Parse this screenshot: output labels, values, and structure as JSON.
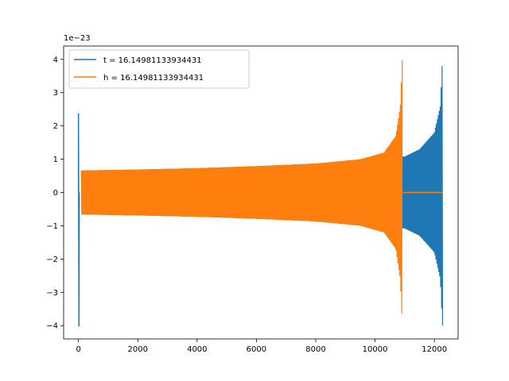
{
  "chart_data": {
    "type": "line",
    "title": "",
    "xlabel": "",
    "ylabel": "",
    "y_offset_label": "1e−23",
    "xlim": [
      -500,
      12800
    ],
    "ylim": [
      -4.4,
      4.4
    ],
    "x_ticks": [
      0,
      2000,
      4000,
      6000,
      8000,
      10000,
      12000
    ],
    "y_ticks": [
      -4,
      -3,
      -2,
      -1,
      0,
      1,
      2,
      3,
      4
    ],
    "x_tick_labels": [
      "0",
      "2000",
      "4000",
      "6000",
      "8000",
      "10000",
      "12000"
    ],
    "y_tick_labels": [
      "−4",
      "−3",
      "−2",
      "−1",
      "0",
      "1",
      "2",
      "3",
      "4"
    ],
    "grid": false,
    "legend_position": "upper-left",
    "series": [
      {
        "name": "t = 16.14981133934431",
        "color": "#1f77b4",
        "initial_spike": {
          "x": 0,
          "max": 2.38,
          "min": -4.02
        },
        "envelope_x": [
          100,
          2000,
          4000,
          6000,
          8000,
          10000,
          10950,
          11000,
          11500,
          12000,
          12200,
          12270
        ],
        "envelope_amp": [
          0.66,
          0.69,
          0.73,
          0.79,
          0.87,
          1.0,
          1.08,
          1.08,
          1.3,
          1.8,
          2.6,
          4.0
        ],
        "end_x": 12280
      },
      {
        "name": "h = 16.14981133934431",
        "color": "#ff7f0e",
        "initial_spike": {
          "x": 0,
          "max": 0.0,
          "min": 0.0
        },
        "envelope_x": [
          100,
          2000,
          4000,
          6000,
          8000,
          9500,
          10300,
          10700,
          10850,
          10920
        ],
        "envelope_amp": [
          0.66,
          0.69,
          0.73,
          0.79,
          0.87,
          1.0,
          1.2,
          1.7,
          2.6,
          4.05
        ],
        "chirp_end_x": 10930,
        "flat_value": 0.0,
        "end_x": 12280
      }
    ]
  }
}
